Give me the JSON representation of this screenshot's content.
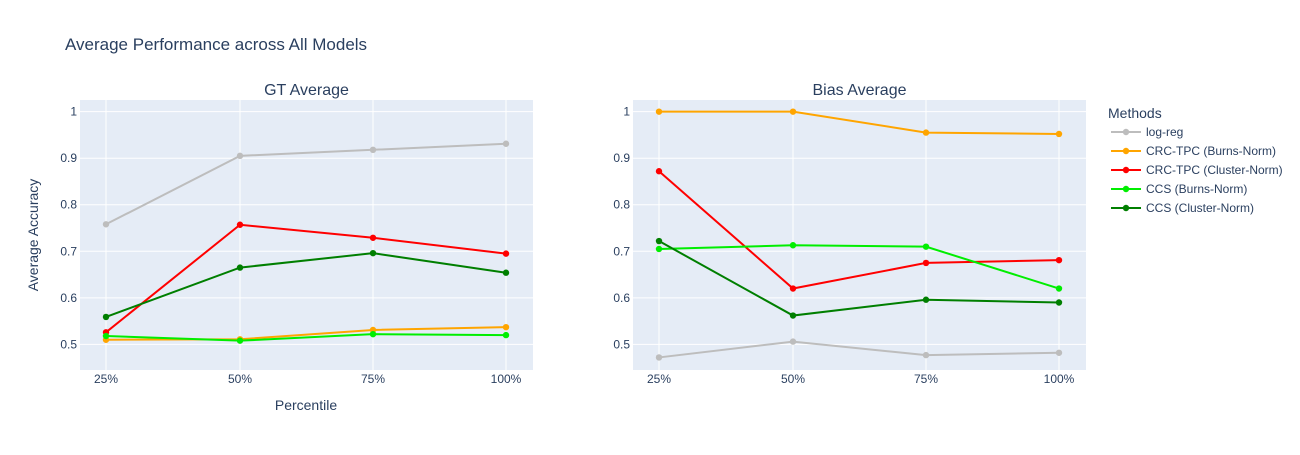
{
  "figure": {
    "title": "Average Performance across All Models",
    "xlabel": "Percentile",
    "ylabel": "Average Accuracy"
  },
  "legend": {
    "title": "Methods",
    "placement": "right"
  },
  "chart_data": [
    {
      "type": "line",
      "title": "GT Average",
      "categories": [
        "25%",
        "50%",
        "75%",
        "100%"
      ],
      "ylim": [
        0.445,
        1.025
      ],
      "yticks": [
        "0.5",
        "0.6",
        "0.7",
        "0.8",
        "0.9",
        "1"
      ],
      "grid": true,
      "series": [
        {
          "name": "log-reg",
          "color": "#bdbdbd",
          "values": [
            0.758,
            0.905,
            0.918,
            0.931
          ]
        },
        {
          "name": "CRC-TPC (Burns-Norm)",
          "color": "#ffa500",
          "values": [
            0.51,
            0.511,
            0.531,
            0.537
          ]
        },
        {
          "name": "CRC-TPC (Cluster-Norm)",
          "color": "#ff0000",
          "values": [
            0.526,
            0.757,
            0.729,
            0.695
          ]
        },
        {
          "name": "CCS (Burns-Norm)",
          "color": "#00ee00",
          "values": [
            0.518,
            0.508,
            0.522,
            0.52
          ]
        },
        {
          "name": "CCS (Cluster-Norm)",
          "color": "#007f00",
          "values": [
            0.559,
            0.665,
            0.696,
            0.654
          ]
        }
      ]
    },
    {
      "type": "line",
      "title": "Bias Average",
      "categories": [
        "25%",
        "50%",
        "75%",
        "100%"
      ],
      "ylim": [
        0.445,
        1.025
      ],
      "yticks": [
        "0.5",
        "0.6",
        "0.7",
        "0.8",
        "0.9",
        "1"
      ],
      "grid": true,
      "series": [
        {
          "name": "log-reg",
          "color": "#bdbdbd",
          "values": [
            0.472,
            0.506,
            0.477,
            0.482
          ]
        },
        {
          "name": "CRC-TPC (Burns-Norm)",
          "color": "#ffa500",
          "values": [
            1.0,
            1.0,
            0.955,
            0.952
          ]
        },
        {
          "name": "CRC-TPC (Cluster-Norm)",
          "color": "#ff0000",
          "values": [
            0.872,
            0.62,
            0.675,
            0.681
          ]
        },
        {
          "name": "CCS (Burns-Norm)",
          "color": "#00ee00",
          "values": [
            0.705,
            0.713,
            0.71,
            0.62
          ]
        },
        {
          "name": "CCS (Cluster-Norm)",
          "color": "#007f00",
          "values": [
            0.722,
            0.562,
            0.596,
            0.59
          ]
        }
      ]
    }
  ]
}
